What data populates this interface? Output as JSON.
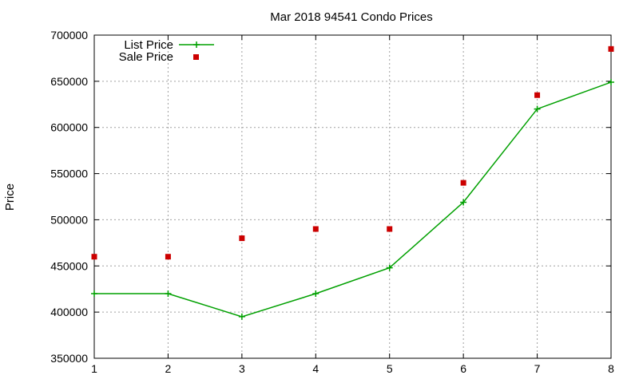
{
  "chart_data": {
    "type": "line",
    "title": "Mar 2018 94541 Condo Prices",
    "xlabel": "",
    "ylabel": "Price",
    "x": [
      1,
      2,
      3,
      4,
      5,
      6,
      7,
      8
    ],
    "xlim": [
      1,
      8
    ],
    "ylim": [
      350000,
      700000
    ],
    "yticks": [
      350000,
      400000,
      450000,
      500000,
      550000,
      600000,
      650000,
      700000
    ],
    "xticks": [
      1,
      2,
      3,
      4,
      5,
      6,
      7,
      8
    ],
    "grid": true,
    "legend_position": "top-left",
    "series": [
      {
        "name": "List Price",
        "style": "line-plus",
        "color": "#00a000",
        "values": [
          420000,
          420000,
          395000,
          420000,
          448000,
          519000,
          620000,
          649000
        ]
      },
      {
        "name": "Sale Price",
        "style": "square-points",
        "color": "#cc0000",
        "values": [
          460000,
          460000,
          480000,
          490000,
          490000,
          540000,
          635000,
          685000
        ]
      }
    ]
  }
}
